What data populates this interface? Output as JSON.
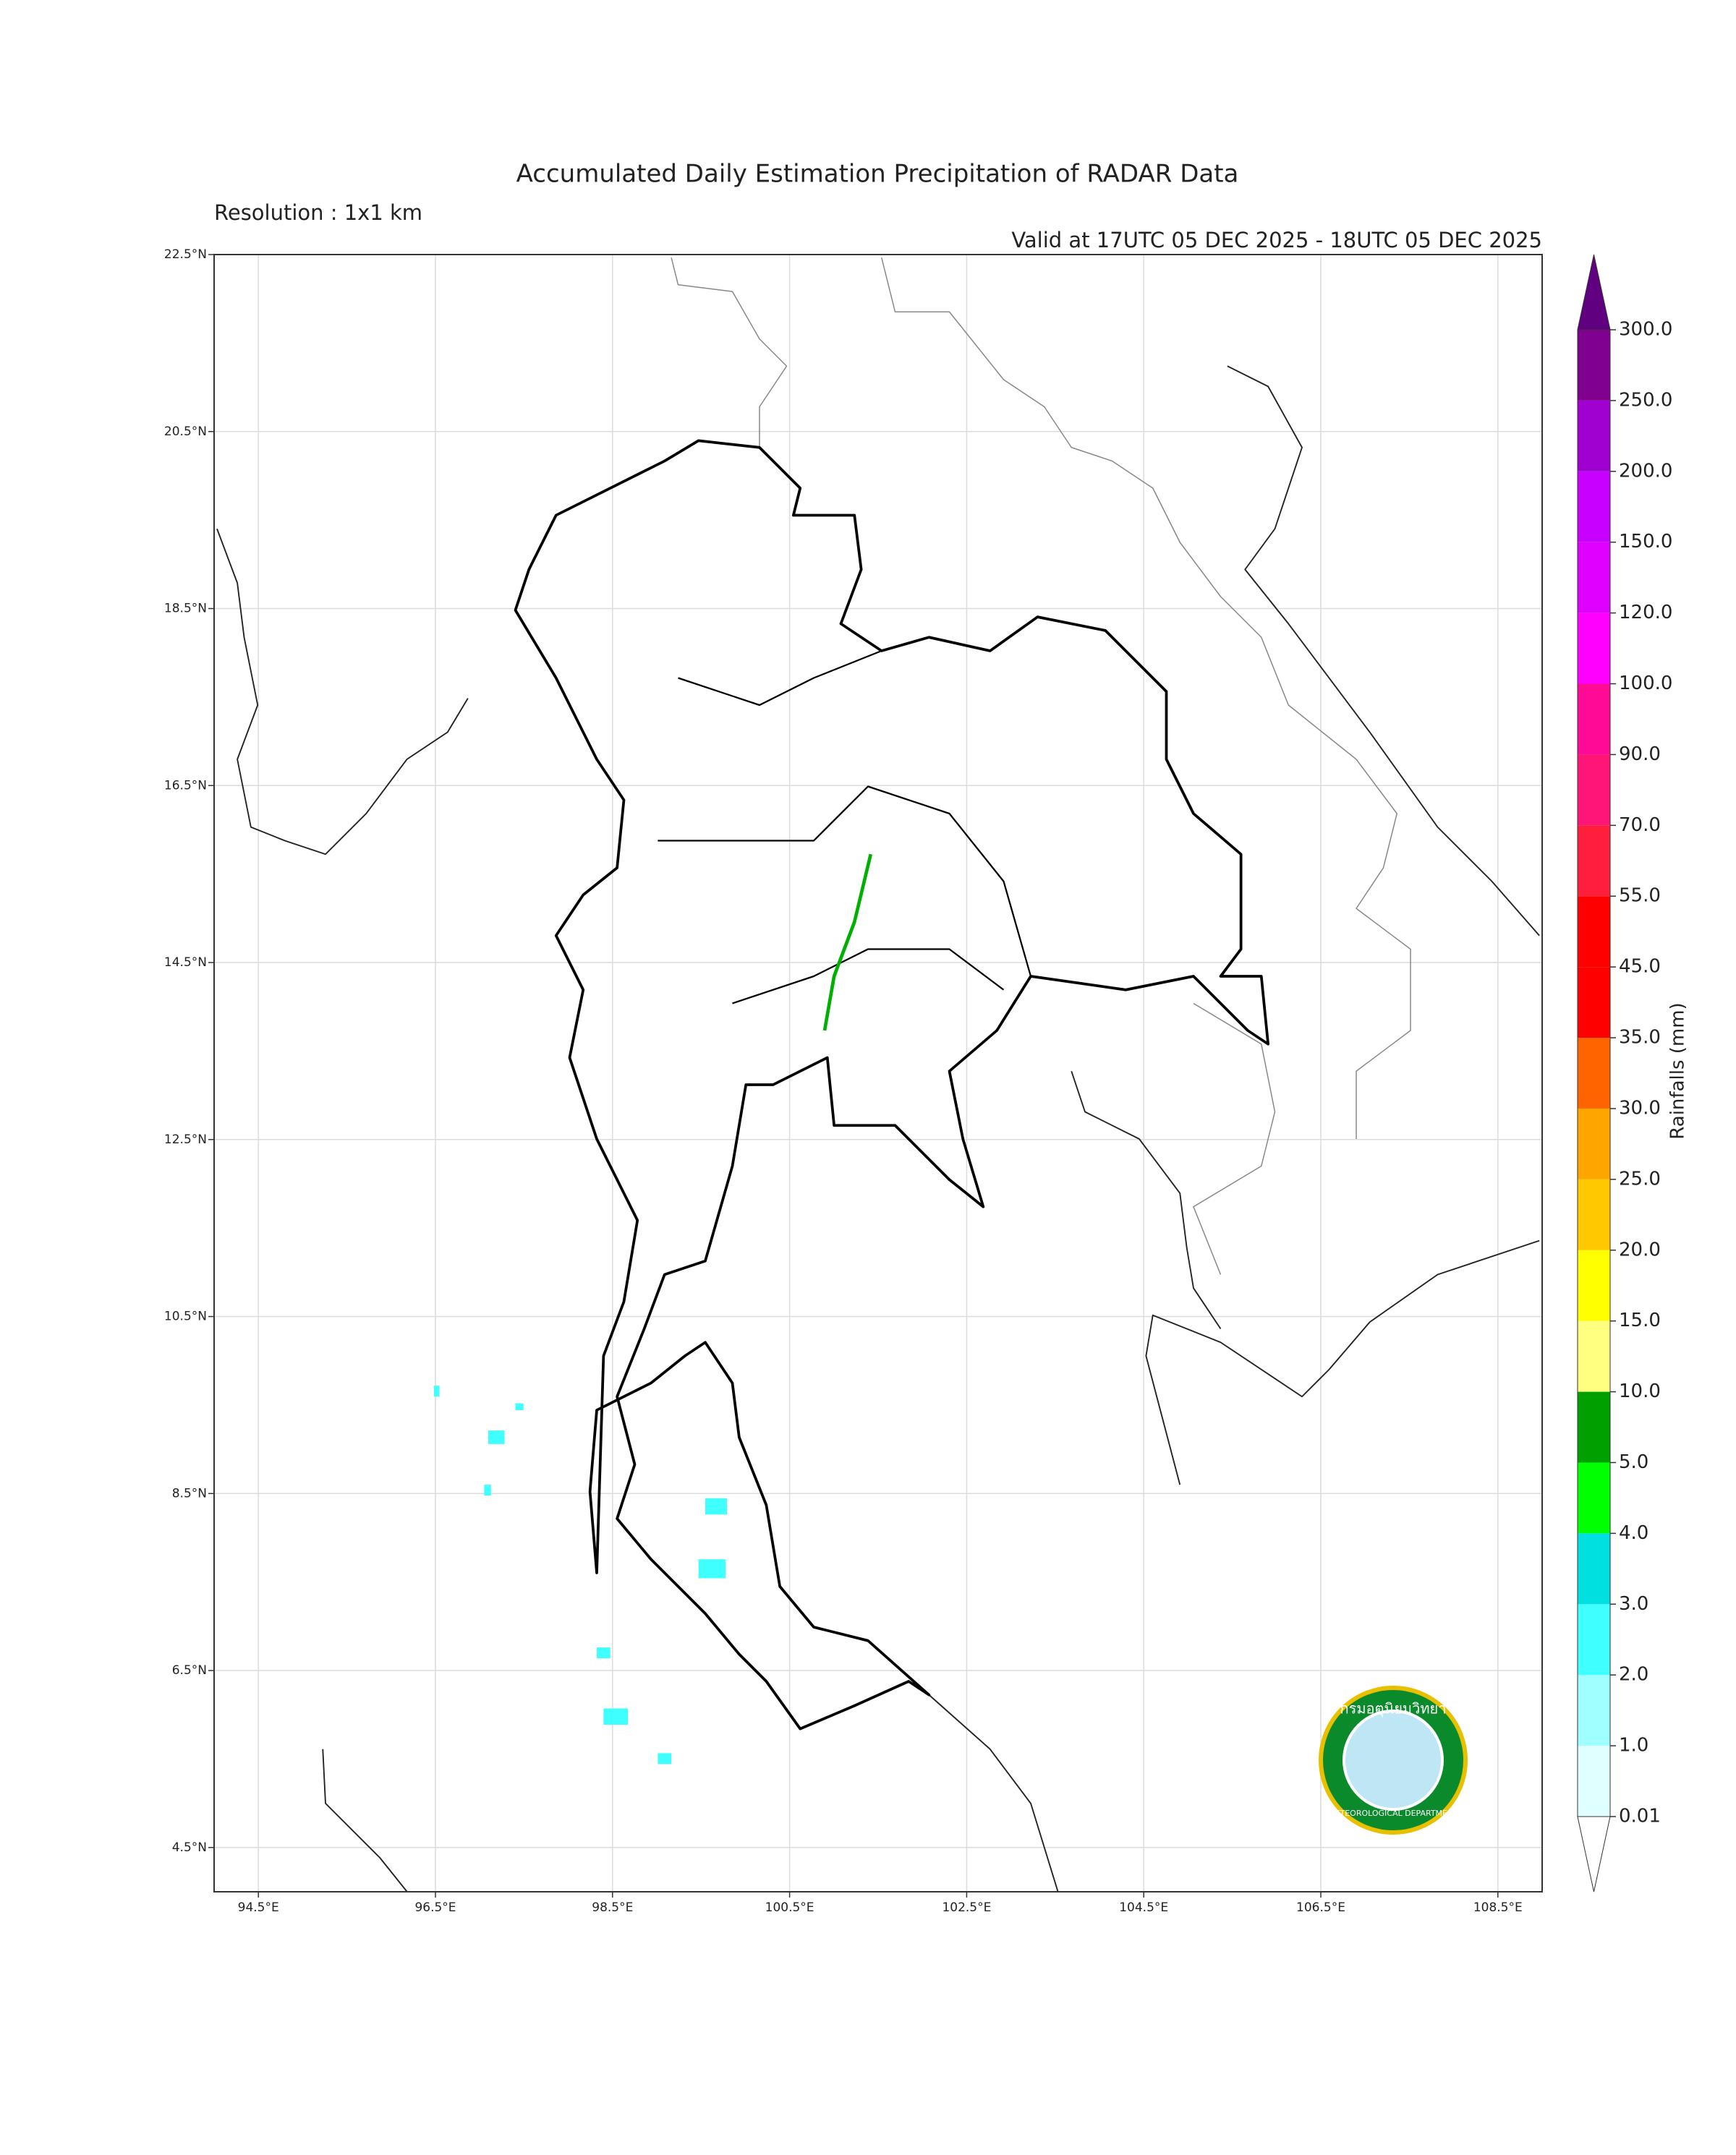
{
  "map": {
    "title": "Accumulated Daily Estimation Precipitation of RADAR Data",
    "subtitle": "Resolution : 1x1 km",
    "valid": "Valid at 17UTC 05 DEC 2025 - 18UTC 05 DEC 2025",
    "xlim": [
      94,
      109
    ],
    "ylim": [
      4,
      22.5
    ],
    "grid": true,
    "xticks": [
      {
        "value": 94.5,
        "label": "94.5°E"
      },
      {
        "value": 96.5,
        "label": "96.5°E"
      },
      {
        "value": 98.5,
        "label": "98.5°E"
      },
      {
        "value": 100.5,
        "label": "100.5°E"
      },
      {
        "value": 102.5,
        "label": "102.5°E"
      },
      {
        "value": 104.5,
        "label": "104.5°E"
      },
      {
        "value": 106.5,
        "label": "106.5°E"
      },
      {
        "value": 108.5,
        "label": "108.5°E"
      }
    ],
    "yticks": [
      {
        "value": 4.5,
        "label": "4.5°N"
      },
      {
        "value": 6.5,
        "label": "6.5°N"
      },
      {
        "value": 8.5,
        "label": "8.5°N"
      },
      {
        "value": 10.5,
        "label": "10.5°N"
      },
      {
        "value": 12.5,
        "label": "12.5°N"
      },
      {
        "value": 14.5,
        "label": "14.5°N"
      },
      {
        "value": 16.5,
        "label": "16.5°N"
      },
      {
        "value": 18.5,
        "label": "18.5°N"
      },
      {
        "value": 20.5,
        "label": "20.5°N"
      },
      {
        "value": 22.5,
        "label": "22.5°N"
      }
    ],
    "colorbar": {
      "label": "Rainfalls (mm)",
      "levels": [
        0.01,
        {
          "value": 1,
          "label": "1.0"
        },
        {
          "value": 2,
          "label": "2.0"
        },
        {
          "value": 3,
          "label": "3.0"
        },
        {
          "value": 4,
          "label": "4.0"
        },
        {
          "value": 5,
          "label": "5.0"
        },
        {
          "value": 10,
          "label": "10.0"
        },
        {
          "value": 15,
          "label": "15.0"
        },
        {
          "value": 20,
          "label": "20.0"
        },
        {
          "value": 25,
          "label": "25.0"
        },
        {
          "value": 30,
          "label": "30.0"
        },
        {
          "value": 35,
          "label": "35.0"
        },
        {
          "value": 45,
          "label": "45.0"
        },
        {
          "value": 55,
          "label": "55.0"
        },
        {
          "value": 70,
          "label": "70.0"
        },
        {
          "value": 90,
          "label": "90.0"
        },
        {
          "value": 100,
          "label": "100.0"
        },
        {
          "value": 120,
          "label": "120.0"
        },
        {
          "value": 150,
          "label": "150.0"
        },
        {
          "value": 200,
          "label": "200.0"
        },
        {
          "value": 250,
          "label": "250.0"
        },
        {
          "value": 300,
          "label": "300.0"
        }
      ],
      "colors": [
        "#e0ffff",
        "#a0ffff",
        "#40ffff",
        "#00e0e0",
        "#00ff00",
        "#00a000",
        "#ffff80",
        "#ffff00",
        "#ffc800",
        "#ffa500",
        "#ff6400",
        "#ff0000",
        "#ff0000",
        "#ff1e3c",
        "#ff1478",
        "#ff0a96",
        "#ff00ff",
        "#e000ff",
        "#c800ff",
        "#a000d0",
        "#800090"
      ],
      "over_color": "#600080",
      "under_color": "#ffffff"
    },
    "logo": {
      "thai": "กรมอุตุนิยมวิทยา",
      "english": "METEOROLOGICAL DEPARTMENT"
    }
  }
}
